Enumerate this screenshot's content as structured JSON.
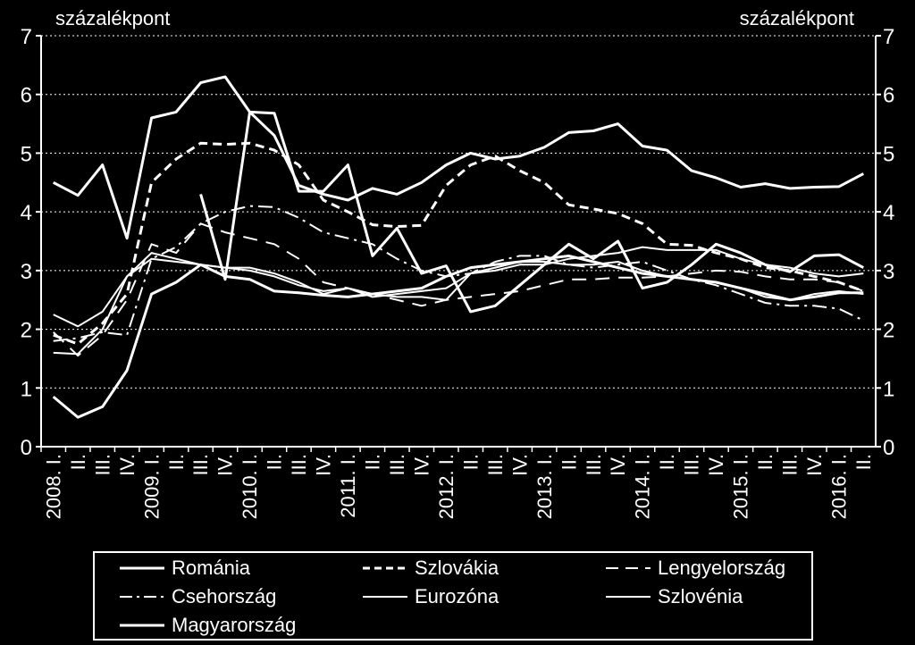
{
  "chart_data": {
    "type": "line",
    "y_unit_left": "százalékpont",
    "y_unit_right": "százalékpont",
    "ylim": [
      0,
      7
    ],
    "yticks": [
      0,
      1,
      2,
      3,
      4,
      5,
      6,
      7
    ],
    "grid": true,
    "legend_position": "bottom",
    "categories": [
      "2008. I.",
      "II.",
      "III.",
      "IV.",
      "2009. I.",
      "II.",
      "III.",
      "IV.",
      "2010. I.",
      "II.",
      "III.",
      "IV.",
      "2011. I.",
      "II.",
      "III.",
      "IV.",
      "2012. I.",
      "II.",
      "III.",
      "IV.",
      "2013. I.",
      "II.",
      "III.",
      "IV.",
      "2014. I.",
      "II.",
      "III.",
      "IV.",
      "2015. I.",
      "II.",
      "III.",
      "IV.",
      "2016. I.",
      "II."
    ],
    "series": [
      {
        "name": "Románia",
        "style": "solid",
        "width": 3,
        "values": [
          null,
          null,
          null,
          null,
          null,
          null,
          4.3,
          2.85,
          5.7,
          5.68,
          4.35,
          4.35,
          4.8,
          3.25,
          3.72,
          2.95,
          3.08,
          2.3,
          2.4,
          2.75,
          3.1,
          3.45,
          3.2,
          3.5,
          2.7,
          2.8,
          3.1,
          3.45,
          3.3,
          3.1,
          2.98,
          3.25,
          3.27,
          3.05
        ]
      },
      {
        "name": "Szlovákia",
        "style": "dash",
        "width": 3,
        "values": [
          1.9,
          1.75,
          2.1,
          2.6,
          4.5,
          4.9,
          5.17,
          5.15,
          5.17,
          5.05,
          4.8,
          4.2,
          4.0,
          3.78,
          3.75,
          3.77,
          4.45,
          4.8,
          4.95,
          4.7,
          4.5,
          4.12,
          4.05,
          3.97,
          3.8,
          3.45,
          3.43,
          3.3,
          3.2,
          3.05,
          3.0,
          2.9,
          2.8,
          2.65
        ]
      },
      {
        "name": "Lengyelország",
        "style": "longdash",
        "width": 2,
        "values": [
          1.95,
          1.55,
          1.9,
          2.5,
          3.45,
          3.3,
          3.8,
          3.65,
          3.55,
          3.45,
          3.2,
          2.8,
          2.7,
          2.6,
          2.5,
          2.4,
          2.5,
          2.55,
          2.6,
          2.65,
          2.75,
          2.85,
          2.85,
          2.88,
          2.88,
          2.9,
          2.95,
          3.0,
          2.98,
          2.9,
          2.85,
          2.85,
          2.8,
          2.65
        ]
      },
      {
        "name": "Csehország",
        "style": "dashdot",
        "width": 2,
        "values": [
          1.8,
          1.85,
          1.95,
          1.9,
          3.2,
          3.4,
          3.8,
          4.0,
          4.1,
          4.08,
          3.9,
          3.65,
          3.55,
          3.45,
          3.2,
          3.0,
          2.9,
          2.95,
          3.15,
          3.25,
          3.25,
          3.1,
          3.05,
          3.1,
          3.15,
          3.0,
          2.85,
          2.75,
          2.6,
          2.45,
          2.4,
          2.4,
          2.35,
          2.15
        ]
      },
      {
        "name": "Eurozóna",
        "style": "solid",
        "width": 2,
        "values": [
          1.6,
          1.58,
          2.0,
          2.9,
          3.3,
          3.2,
          3.1,
          3.05,
          3.0,
          2.9,
          2.75,
          2.65,
          2.7,
          2.6,
          2.55,
          2.55,
          2.5,
          2.95,
          3.05,
          3.15,
          3.15,
          3.1,
          3.1,
          3.15,
          3.0,
          2.9,
          2.85,
          2.8,
          2.7,
          2.55,
          2.5,
          2.6,
          2.65,
          2.6
        ]
      },
      {
        "name": "Szlovénia",
        "style": "solid",
        "width": 2,
        "values": [
          2.25,
          2.05,
          2.3,
          2.9,
          3.2,
          3.15,
          3.1,
          3.05,
          3.05,
          2.95,
          2.8,
          2.6,
          2.7,
          2.55,
          2.6,
          2.65,
          2.7,
          2.95,
          3.0,
          3.1,
          3.1,
          3.2,
          3.25,
          3.3,
          3.4,
          3.35,
          3.35,
          3.35,
          3.2,
          3.1,
          3.05,
          2.95,
          2.9,
          2.95
        ]
      },
      {
        "name": "Magyarország",
        "style": "solid",
        "width": 3,
        "values": [
          4.5,
          4.28,
          4.8,
          3.55,
          5.6,
          5.7,
          6.2,
          6.3,
          5.7,
          5.3,
          4.45,
          4.3,
          4.2,
          4.4,
          4.3,
          4.5,
          4.8,
          5.0,
          4.9,
          4.95,
          5.1,
          5.35,
          5.38,
          5.5,
          5.12,
          5.05,
          4.7,
          4.58,
          4.42,
          4.48,
          4.4,
          4.42,
          4.43,
          4.65
        ]
      }
    ],
    "extra_marks": [
      {
        "series": "Eurozóna",
        "note": "secondary low line",
        "values": [
          0.85,
          0.5,
          0.68,
          1.3,
          2.6,
          2.8,
          3.1,
          2.9,
          2.85,
          2.65,
          2.62,
          2.58,
          2.55,
          2.6,
          2.65,
          2.7,
          2.9,
          3.05,
          3.1,
          3.15,
          3.2,
          3.25,
          3.15,
          3.05,
          2.95,
          2.9,
          2.85,
          2.8,
          2.7,
          2.6,
          2.5,
          2.55,
          2.62,
          2.62
        ]
      }
    ]
  }
}
